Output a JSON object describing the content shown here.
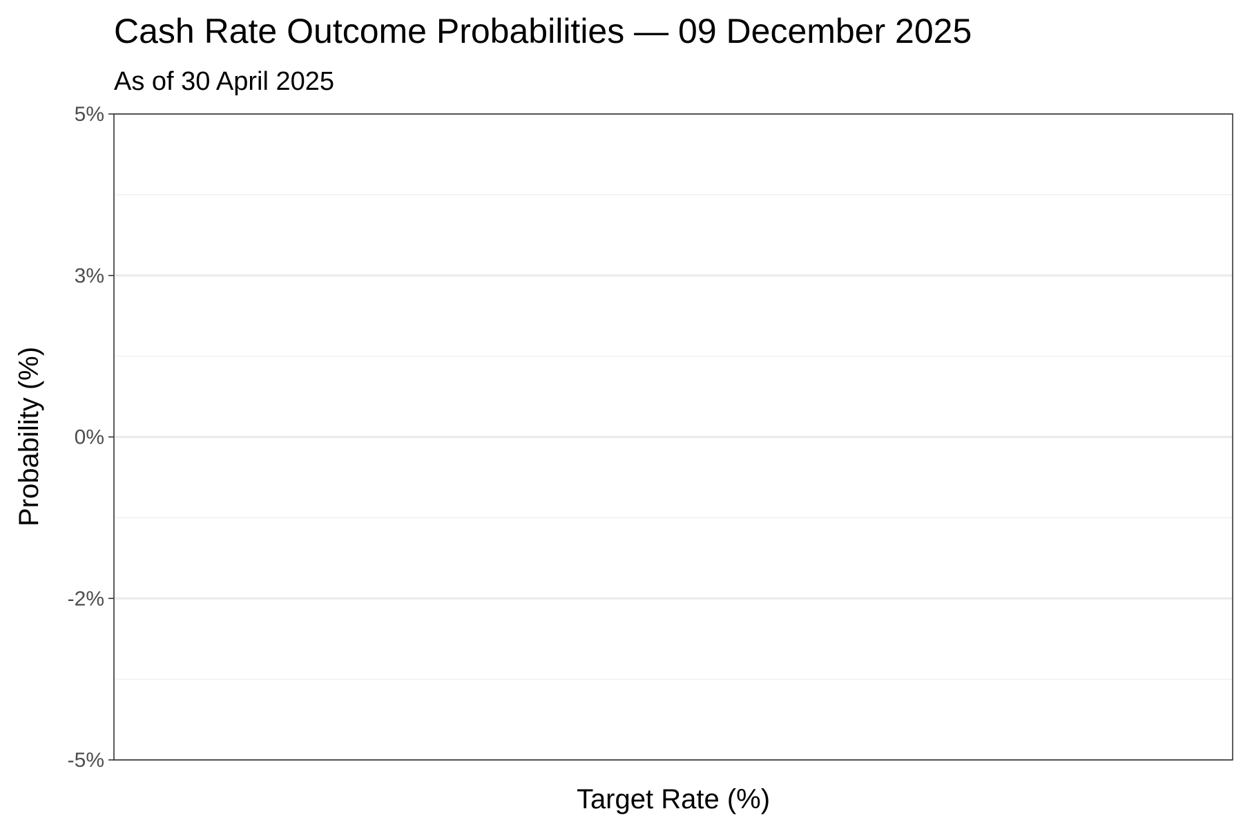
{
  "chart_data": {
    "type": "bar",
    "title": "Cash Rate Outcome Probabilities — 09 December 2025",
    "subtitle": "As of 30 April 2025",
    "xlabel": "Target Rate (%)",
    "ylabel": "Probability (%)",
    "categories": [],
    "values": [],
    "ylim": [
      -5,
      5
    ],
    "y_ticks": [
      -5,
      -2.5,
      0,
      2.5,
      5
    ],
    "y_tick_labels": [
      "-5%",
      "-2%",
      "0%",
      "3%",
      "5%"
    ],
    "grid": true,
    "legend": "none",
    "colors": {
      "panel_border": "#333333",
      "grid_major": "#ebebeb",
      "grid_minor": "#f0f0f0",
      "tick_text": "#4d4d4d",
      "text": "#000000"
    }
  }
}
